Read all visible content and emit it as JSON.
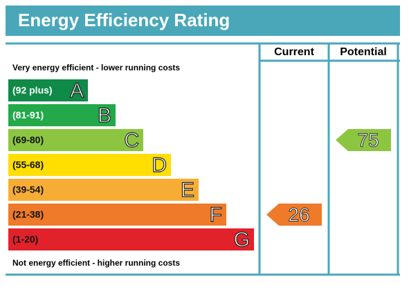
{
  "title": "Energy Efficiency Rating",
  "columns": [
    "Current",
    "Potential"
  ],
  "top_note": "Very energy efficient - lower running costs",
  "bottom_note": "Not energy efficient - higher running costs",
  "bands": [
    {
      "range": "(92 plus)",
      "letter": "A",
      "color": "#0f8a47"
    },
    {
      "range": "(81-91)",
      "letter": "B",
      "color": "#23a84a"
    },
    {
      "range": "(69-80)",
      "letter": "C",
      "color": "#8cc640"
    },
    {
      "range": "(55-68)",
      "letter": "D",
      "color": "#ffde00"
    },
    {
      "range": "(39-54)",
      "letter": "E",
      "color": "#f7ad35"
    },
    {
      "range": "(21-38)",
      "letter": "F",
      "color": "#ee7a2a"
    },
    {
      "range": "(1-20)",
      "letter": "G",
      "color": "#e2222b"
    }
  ],
  "ratings": [
    {
      "value": 26
    },
    {
      "value": 75
    }
  ]
}
